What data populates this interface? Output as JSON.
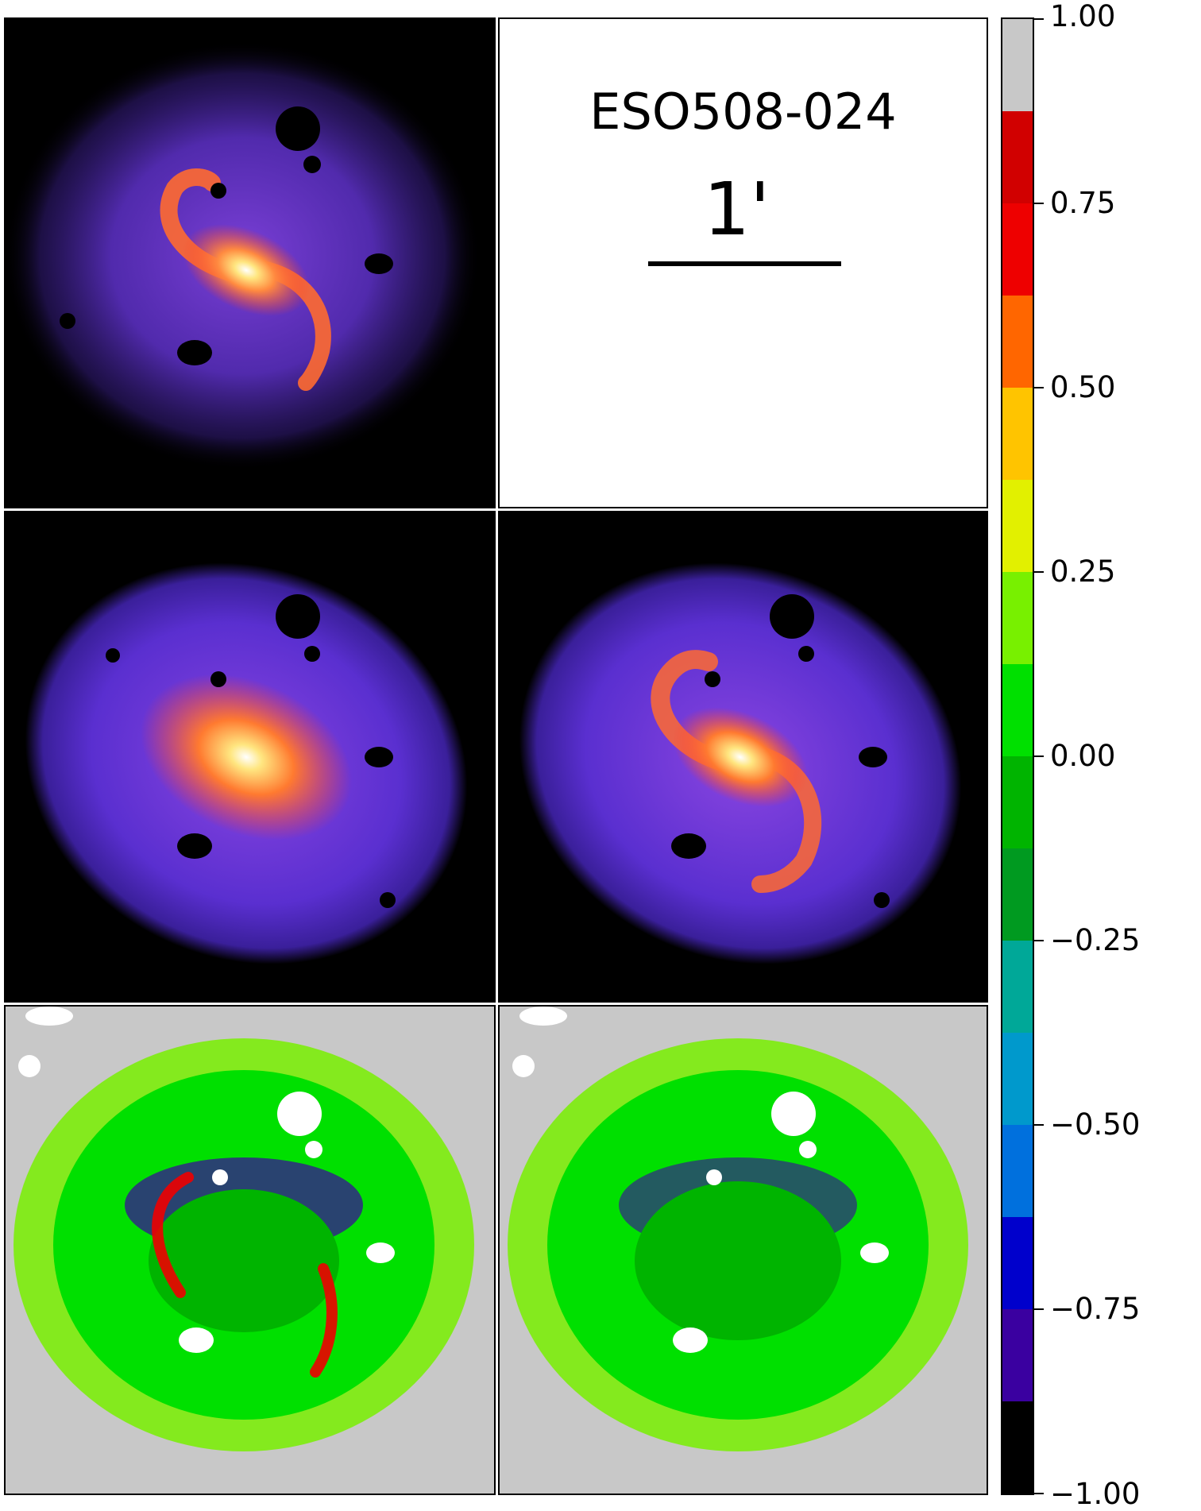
{
  "figure": {
    "galaxy_name": "ESO508-024",
    "scale_label": "1'"
  },
  "colorbar": {
    "ticks": [
      "1.00",
      "0.75",
      "0.50",
      "0.25",
      "0.00",
      "−0.25",
      "−0.50",
      "−0.75",
      "−1.00"
    ],
    "range": [
      -1.0,
      1.0
    ],
    "levels": [
      {
        "from": 0.875,
        "to": 1.0,
        "color": "#c8c8c8"
      },
      {
        "from": 0.75,
        "to": 0.875,
        "color": "#d10000"
      },
      {
        "from": 0.625,
        "to": 0.75,
        "color": "#ee0000"
      },
      {
        "from": 0.5,
        "to": 0.625,
        "color": "#ff6600"
      },
      {
        "from": 0.375,
        "to": 0.5,
        "color": "#ffc400"
      },
      {
        "from": 0.25,
        "to": 0.375,
        "color": "#e2f000"
      },
      {
        "from": 0.125,
        "to": 0.25,
        "color": "#78f000"
      },
      {
        "from": 0.0,
        "to": 0.125,
        "color": "#00e000"
      },
      {
        "from": -0.125,
        "to": 0.0,
        "color": "#00b400"
      },
      {
        "from": -0.25,
        "to": -0.125,
        "color": "#009a20"
      },
      {
        "from": -0.375,
        "to": -0.25,
        "color": "#00a898"
      },
      {
        "from": -0.5,
        "to": -0.375,
        "color": "#0099cc"
      },
      {
        "from": -0.625,
        "to": -0.5,
        "color": "#0070dd"
      },
      {
        "from": -0.75,
        "to": -0.625,
        "color": "#0000cc"
      },
      {
        "from": -0.875,
        "to": -0.75,
        "color": "#3a00a0"
      },
      {
        "from": -1.0,
        "to": -0.875,
        "color": "#000000"
      }
    ]
  },
  "panels": [
    {
      "name": "observed-image"
    },
    {
      "name": "label-panel"
    },
    {
      "name": "bulge-disk-model"
    },
    {
      "name": "bulge-disk-arms-model"
    },
    {
      "name": "residual-1"
    },
    {
      "name": "residual-2"
    }
  ]
}
